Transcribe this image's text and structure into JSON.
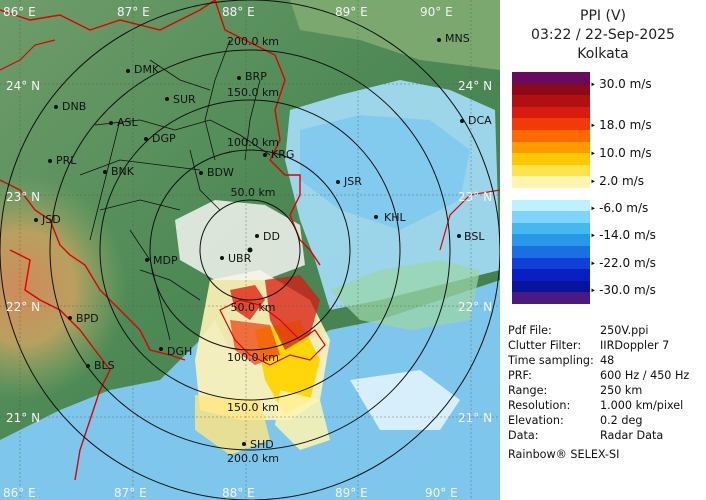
{
  "header": {
    "product": "PPI (V)",
    "datetime": "03:22 / 22-Sep-2025",
    "station": "Kolkata"
  },
  "legend": {
    "ticks": [
      "30.0 m/s",
      "18.0 m/s",
      "10.0 m/s",
      "2.0 m/s",
      "-6.0 m/s",
      "-14.0 m/s",
      "-22.0 m/s",
      "-30.0 m/s"
    ],
    "colors": [
      "#6a0a5e",
      "#8b0a1a",
      "#b01010",
      "#d81a10",
      "#f03a0a",
      "#ff6a00",
      "#ff9a00",
      "#ffc800",
      "#ffe34a",
      "#fff5b0",
      "#ffffff",
      "#bff0ff",
      "#7fd4ff",
      "#45b8f0",
      "#2a98e8",
      "#1a70e0",
      "#1040d8",
      "#0820c0",
      "#08149a",
      "#4a1a80"
    ]
  },
  "info": {
    "labels": [
      "Pdf File:",
      "Clutter Filter:",
      "Time sampling:",
      "PRF:",
      "Range:",
      "Resolution:",
      "Elevation:",
      "Data:"
    ],
    "values": [
      "250V.ppi",
      "IIRDoppler 7",
      "48",
      "600 Hz / 450 Hz",
      "250 km",
      "1.000 km/pixel",
      "0.2 deg",
      "Radar Data"
    ]
  },
  "footer": "Rainbow® SELEX-SI",
  "map": {
    "lon_labels": [
      "86° E",
      "87° E",
      "88° E",
      "89° E",
      "90° E"
    ],
    "lat_labels": [
      "24° N",
      "23° N",
      "22° N",
      "21° N"
    ],
    "range_labels": [
      "50.0 km",
      "100.0 km",
      "150.0 km",
      "200.0 km",
      "50.0 km",
      "100.0 km",
      "150.0 km",
      "200.0 km"
    ],
    "stations": [
      "MNS",
      "DMK",
      "BRP",
      "DNB",
      "SUR",
      "ASL",
      "DGP",
      "DCA",
      "PRL",
      "BNK",
      "BDW",
      "KRG",
      "JSR",
      "KHL",
      "JSD",
      "DD",
      "BSL",
      "MDP",
      "UBR",
      "BPD",
      "DGH",
      "BLS",
      "SHD"
    ]
  }
}
